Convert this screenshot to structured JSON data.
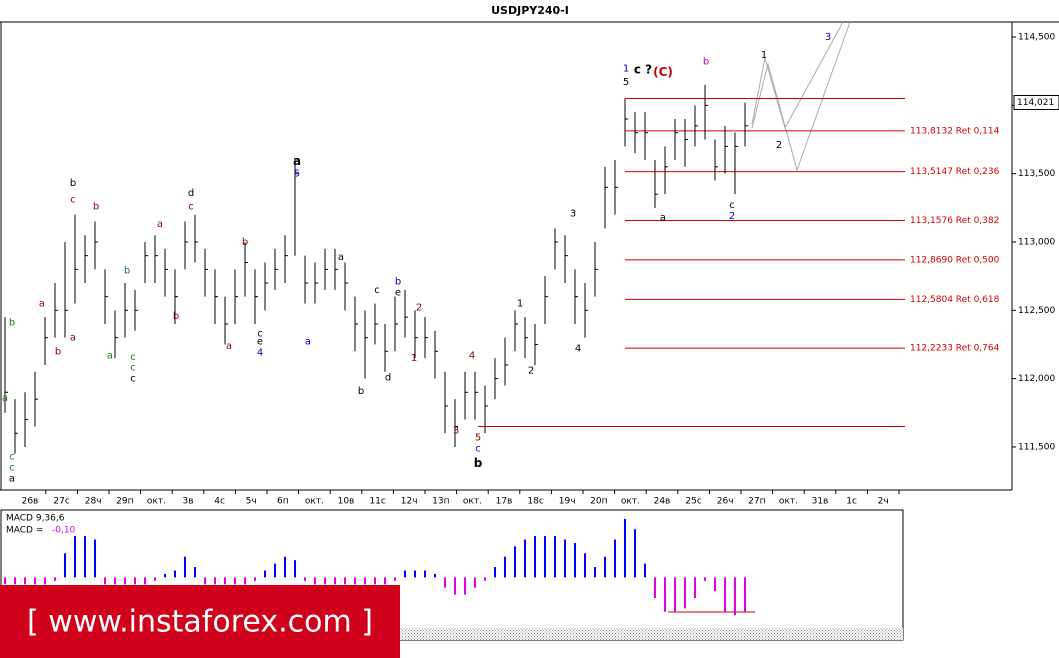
{
  "chart_data": [
    {
      "type": "ohlc",
      "title": "USDJPY240-I",
      "color": "#000000",
      "categories": [
        "26в",
        "27с",
        "28ч",
        "29п",
        "окт.",
        "3в",
        "4с",
        "5ч",
        "6п",
        "окт.",
        "10в",
        "11с",
        "12ч",
        "13п",
        "окт.",
        "17в",
        "18с",
        "19ч",
        "20п",
        "окт.",
        "24в",
        "25с",
        "26ч",
        "27п",
        "окт.",
        "31в",
        "1с",
        "2ч"
      ],
      "high": [
        112.45,
        111.85,
        111.9,
        112.05,
        112.45,
        112.7,
        113.0,
        113.2,
        113.05,
        113.15,
        112.8,
        112.5,
        112.7,
        112.65,
        113.0,
        113.05,
        112.95,
        112.8,
        113.15,
        113.2,
        112.95,
        112.8,
        112.6,
        112.8,
        113.0,
        112.8,
        112.85,
        112.95,
        113.05,
        113.6,
        112.9,
        112.85,
        112.95,
        112.95,
        112.85,
        112.6,
        112.5,
        112.55,
        112.4,
        112.6,
        112.65,
        112.5,
        112.45,
        112.35,
        112.05,
        111.85,
        112.05,
        112.05,
        111.95,
        112.15,
        112.3,
        112.5,
        112.45,
        112.4,
        112.75,
        113.1,
        113.05,
        112.8,
        112.7,
        113.0,
        113.55,
        113.6,
        114.05,
        113.95,
        113.95,
        113.6,
        113.7,
        113.9,
        113.9,
        114.0,
        114.15,
        113.75,
        113.85,
        113.8,
        114.02
      ],
      "low": [
        111.75,
        111.45,
        111.5,
        111.65,
        112.1,
        112.3,
        112.3,
        112.55,
        112.7,
        112.8,
        112.4,
        112.15,
        112.3,
        112.35,
        112.7,
        112.7,
        112.6,
        112.4,
        112.8,
        112.85,
        112.6,
        112.4,
        112.25,
        112.4,
        112.6,
        112.4,
        112.5,
        112.65,
        112.7,
        112.9,
        112.55,
        112.55,
        112.65,
        112.65,
        112.5,
        112.2,
        112.0,
        112.25,
        112.05,
        112.2,
        112.3,
        112.15,
        112.15,
        112.0,
        111.6,
        111.5,
        111.7,
        111.7,
        111.6,
        111.85,
        111.95,
        112.2,
        112.15,
        112.1,
        112.4,
        112.8,
        112.7,
        112.4,
        112.3,
        112.6,
        113.1,
        113.2,
        113.7,
        113.65,
        113.6,
        113.25,
        113.35,
        113.6,
        113.55,
        113.7,
        113.75,
        113.45,
        113.5,
        113.35,
        113.7
      ],
      "close": [
        111.9,
        111.6,
        111.7,
        111.85,
        112.3,
        112.5,
        112.5,
        112.8,
        112.9,
        113.0,
        112.6,
        112.3,
        112.5,
        112.5,
        112.9,
        112.9,
        112.8,
        112.6,
        113.0,
        113.0,
        112.8,
        112.6,
        112.4,
        112.6,
        112.85,
        112.6,
        112.7,
        112.8,
        112.9,
        113.5,
        112.7,
        112.7,
        112.8,
        112.8,
        112.7,
        112.4,
        112.3,
        112.4,
        112.2,
        112.4,
        112.45,
        112.3,
        112.3,
        112.2,
        111.8,
        111.65,
        111.9,
        111.9,
        111.8,
        112.0,
        112.1,
        112.4,
        112.3,
        112.25,
        112.6,
        113.0,
        112.9,
        112.6,
        112.5,
        112.8,
        113.4,
        113.4,
        113.9,
        113.8,
        113.8,
        113.35,
        113.55,
        113.8,
        113.75,
        113.85,
        114.0,
        113.55,
        113.7,
        113.7,
        113.85
      ],
      "ylim": [
        111.185,
        114.61
      ],
      "yticks": [
        {
          "value": 114.5,
          "label": "114,500"
        },
        {
          "value": 114.0,
          "label": "114,000"
        },
        {
          "value": 113.5,
          "label": "113,500"
        },
        {
          "value": 113.0,
          "label": "113,000"
        },
        {
          "value": 112.5,
          "label": "112,500"
        },
        {
          "value": 112.0,
          "label": "112,000"
        },
        {
          "value": 111.5,
          "label": "111,500"
        }
      ],
      "last_price": {
        "value": 114.021,
        "label": "114,021"
      },
      "fib_color": "#d40000",
      "fib_from_bar": 62,
      "fib_levels": [
        {
          "value": 113.8132,
          "label": "113,8132 Ret 0,114"
        },
        {
          "value": 113.5147,
          "label": "113,5147 Ret 0,236"
        },
        {
          "value": 113.1576,
          "label": "113,1576 Ret 0,382"
        },
        {
          "value": 112.869,
          "label": "112,8690 Ret 0,500"
        },
        {
          "value": 112.5804,
          "label": "112,5804 Ret 0,618"
        },
        {
          "value": 112.2233,
          "label": "112,2233 Ret 0,764"
        }
      ],
      "hlines": [
        {
          "value": 114.05,
          "from_bar": 62
        },
        {
          "value": 111.65,
          "from_bar": 47.3
        }
      ],
      "annotations": [
        {
          "text": "b",
          "bar": 0.7,
          "price": 112.41,
          "color": "#1a7a1a"
        },
        {
          "text": "a",
          "bar": 0,
          "price": 111.86,
          "color": "#1a7a1a"
        },
        {
          "text": "c",
          "bar": 0.7,
          "price": 111.43,
          "color": "#1a7a1a"
        },
        {
          "text": "c",
          "bar": 0.7,
          "price": 111.35,
          "color": "#1a7a1a"
        },
        {
          "text": "a",
          "bar": 0.7,
          "price": 111.27,
          "color": "#000000"
        },
        {
          "text": "a",
          "bar": 3.7,
          "price": 112.55,
          "color": "#8b0000"
        },
        {
          "text": "b",
          "bar": 5.3,
          "price": 112.2,
          "color": "#8b0000"
        },
        {
          "text": "b",
          "bar": 6.8,
          "price": 113.43,
          "color": "#000000"
        },
        {
          "text": "c",
          "bar": 6.8,
          "price": 113.31,
          "color": "#8b0000"
        },
        {
          "text": "a",
          "bar": 6.8,
          "price": 112.3,
          "color": "#8b0000"
        },
        {
          "text": "b",
          "bar": 9.1,
          "price": 113.26,
          "color": "#8b0000"
        },
        {
          "text": "b",
          "bar": 12.2,
          "price": 112.79,
          "color": "#1a7a1a"
        },
        {
          "text": "a",
          "bar": 10.5,
          "price": 112.17,
          "color": "#1a7a1a"
        },
        {
          "text": "c",
          "bar": 12.8,
          "price": 112.16,
          "color": "#1a7a1a"
        },
        {
          "text": "c",
          "bar": 12.8,
          "price": 112.08,
          "color": "#1a7a1a"
        },
        {
          "text": "c",
          "bar": 12.8,
          "price": 112.0,
          "color": "#000000"
        },
        {
          "text": "a",
          "bar": 15.5,
          "price": 113.13,
          "color": "#8b0000"
        },
        {
          "text": "b",
          "bar": 17.1,
          "price": 112.46,
          "color": "#8b0000"
        },
        {
          "text": "d",
          "bar": 18.6,
          "price": 113.36,
          "color": "#000000"
        },
        {
          "text": "c",
          "bar": 18.6,
          "price": 113.26,
          "color": "#8b0000"
        },
        {
          "text": "a",
          "bar": 22.4,
          "price": 112.24,
          "color": "#8b0000"
        },
        {
          "text": "b",
          "bar": 24,
          "price": 113.0,
          "color": "#8b0000"
        },
        {
          "text": "c",
          "bar": 25.5,
          "price": 112.33,
          "color": "#000000"
        },
        {
          "text": "e",
          "bar": 25.5,
          "price": 112.27,
          "color": "#000000"
        },
        {
          "text": "4",
          "bar": 25.5,
          "price": 112.19,
          "color": "#0000cd"
        },
        {
          "text": "a",
          "bar": 29.2,
          "price": 113.59,
          "color": "#000000",
          "bold": true
        },
        {
          "text": "5",
          "bar": 29.2,
          "price": 113.5,
          "color": "#0000cd"
        },
        {
          "text": "a",
          "bar": 30.3,
          "price": 112.27,
          "color": "#0000cd"
        },
        {
          "text": "a",
          "bar": 33.6,
          "price": 112.89,
          "color": "#000000"
        },
        {
          "text": "c",
          "bar": 37.2,
          "price": 112.65,
          "color": "#000000"
        },
        {
          "text": "b",
          "bar": 39.3,
          "price": 112.71,
          "color": "#0000cd"
        },
        {
          "text": "e",
          "bar": 39.3,
          "price": 112.63,
          "color": "#000000"
        },
        {
          "text": "2",
          "bar": 41.4,
          "price": 112.52,
          "color": "#8b0000"
        },
        {
          "text": "1",
          "bar": 40.9,
          "price": 112.15,
          "color": "#8b0000"
        },
        {
          "text": "d",
          "bar": 38.3,
          "price": 112.01,
          "color": "#000000"
        },
        {
          "text": "b",
          "bar": 35.6,
          "price": 111.91,
          "color": "#000000"
        },
        {
          "text": "4",
          "bar": 46.7,
          "price": 112.17,
          "color": "#8b0000"
        },
        {
          "text": "3",
          "bar": 45.1,
          "price": 111.62,
          "color": "#8b0000"
        },
        {
          "text": "5",
          "bar": 47.3,
          "price": 111.57,
          "color": "#8b0000"
        },
        {
          "text": "c",
          "bar": 47.3,
          "price": 111.49,
          "color": "#0000cd"
        },
        {
          "text": "b",
          "bar": 47.3,
          "price": 111.38,
          "color": "#000000",
          "bold": true
        },
        {
          "text": "1",
          "bar": 51.5,
          "price": 112.55,
          "color": "#000000"
        },
        {
          "text": "2",
          "bar": 52.6,
          "price": 112.06,
          "color": "#000000"
        },
        {
          "text": "3",
          "bar": 56.8,
          "price": 113.21,
          "color": "#000000"
        },
        {
          "text": "4",
          "bar": 57.3,
          "price": 112.22,
          "color": "#000000"
        },
        {
          "text": "1",
          "bar": 62.1,
          "price": 114.27,
          "color": "#0000cd"
        },
        {
          "text": "5",
          "bar": 62.1,
          "price": 114.17,
          "color": "#000000"
        },
        {
          "text": "c ?",
          "bar": 63.8,
          "price": 114.26,
          "color": "#000000",
          "bold": true
        },
        {
          "text": "(C)",
          "bar": 65.8,
          "price": 114.24,
          "color": "#c00000",
          "bold": true
        },
        {
          "text": "a",
          "bar": 65.8,
          "price": 113.18,
          "color": "#000000"
        },
        {
          "text": "b",
          "bar": 70.1,
          "price": 114.32,
          "color": "#c000c0"
        },
        {
          "text": "c",
          "bar": 72.7,
          "price": 113.27,
          "color": "#000000"
        },
        {
          "text": "2",
          "bar": 72.7,
          "price": 113.19,
          "color": "#0000cd"
        },
        {
          "text": "1",
          "bar": 75.9,
          "price": 114.37,
          "color": "#000000"
        },
        {
          "text": "2",
          "bar": 77.4,
          "price": 113.71,
          "color": "#000000"
        },
        {
          "text": "3",
          "bar": 82.3,
          "price": 114.5,
          "color": "#0000cd"
        }
      ],
      "watermark": "[ www.instaforex.com ]"
    },
    {
      "type": "histogram",
      "title": "MACD 9,36,6",
      "value_prefix": "MACD =",
      "value": -0.1,
      "value_label": "-0,10",
      "color_positive": "#0000ff",
      "color_negative": "#e000e0",
      "ylim": [
        -0.15,
        0.19
      ],
      "values": [
        -0.02,
        -0.02,
        -0.02,
        -0.02,
        -0.02,
        -0.01,
        0.07,
        0.12,
        0.12,
        0.11,
        -0.02,
        -0.02,
        -0.02,
        -0.02,
        -0.02,
        -0.01,
        0.01,
        0.02,
        0.06,
        0.03,
        -0.02,
        -0.02,
        -0.02,
        -0.02,
        -0.02,
        -0.01,
        0.02,
        0.04,
        0.06,
        0.05,
        -0.01,
        -0.02,
        -0.02,
        -0.02,
        -0.02,
        -0.02,
        -0.02,
        -0.02,
        -0.02,
        -0.01,
        0.02,
        0.02,
        0.02,
        0.01,
        -0.03,
        -0.05,
        -0.05,
        -0.03,
        -0.01,
        0.03,
        0.06,
        0.09,
        0.11,
        0.12,
        0.12,
        0.12,
        0.11,
        0.1,
        0.07,
        0.03,
        0.06,
        0.11,
        0.17,
        0.14,
        0.04,
        -0.06,
        -0.1,
        -0.1,
        -0.09,
        -0.06,
        -0.01,
        -0.04,
        -0.1,
        -0.11,
        -0.1
      ]
    }
  ]
}
